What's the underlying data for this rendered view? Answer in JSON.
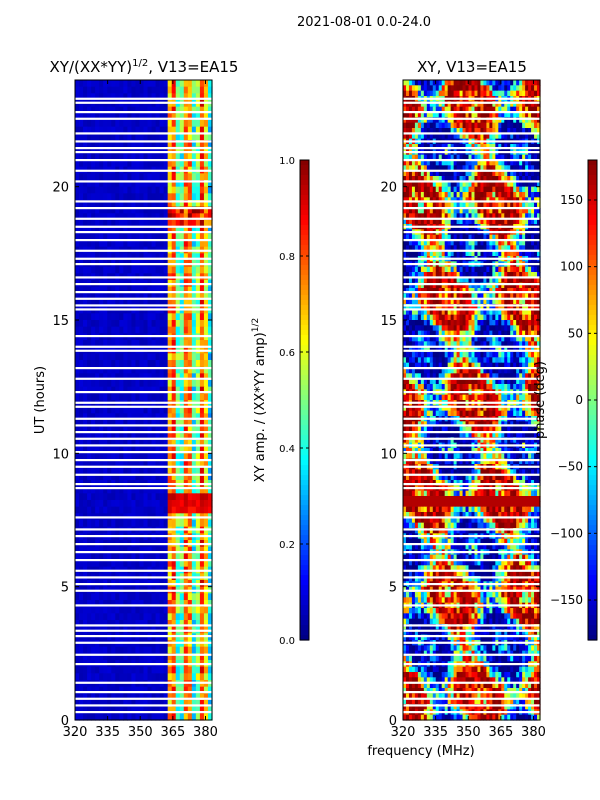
{
  "figure": {
    "suptitle": "2021-08-01 0.0-24.0"
  },
  "chart_data": [
    {
      "type": "heatmap",
      "title_main": "XY/(XX*YY)",
      "title_sup": "1/2",
      "title_rest": ", V13=EA15",
      "xlabel": "",
      "ylabel": "UT (hours)",
      "xlim": [
        320,
        383
      ],
      "ylim": [
        0,
        24
      ],
      "xticks": [
        320,
        335,
        350,
        365,
        380
      ],
      "yticks": [
        0,
        5,
        10,
        15,
        20
      ],
      "colormap": "jet",
      "colorbar": {
        "label_main": "XY amp. / (XX*YY amp)",
        "label_sup": "1/2",
        "range": [
          0.0,
          1.0
        ],
        "ticks": [
          "0.0",
          "0.2",
          "0.4",
          "0.6",
          "0.8",
          "1.0"
        ],
        "tick_values": [
          0.0,
          0.2,
          0.4,
          0.6,
          0.8,
          1.0
        ]
      },
      "rfi_band_MHz": [
        363,
        383
      ],
      "description_values": {
        "background_amplitude": 0.05,
        "band_peak_amplitude": 0.95
      }
    },
    {
      "type": "heatmap",
      "title_main": "XY, V13=EA15",
      "xlabel": "frequency (MHz)",
      "ylabel": "",
      "xlim": [
        320,
        383
      ],
      "ylim": [
        0,
        24
      ],
      "xticks": [
        320,
        335,
        350,
        365,
        380
      ],
      "yticks": [
        0,
        5,
        10,
        15,
        20
      ],
      "colormap": "jet",
      "colorbar": {
        "label_main": "phase (deg)",
        "range": [
          -180,
          180
        ],
        "ticks": [
          "150",
          "100",
          "50",
          "0",
          "−50",
          "−100",
          "−150"
        ],
        "tick_values": [
          150,
          100,
          50,
          0,
          -50,
          -100,
          -150
        ]
      }
    }
  ],
  "flagged_rows_hours": [
    0.3,
    0.55,
    0.8,
    1.05,
    1.4,
    2.1,
    2.45,
    2.9,
    3.15,
    3.35,
    3.55,
    4.3,
    4.85,
    5.1,
    5.35,
    5.6,
    6.0,
    6.3,
    6.6,
    6.9,
    7.15,
    7.6,
    8.7,
    8.85,
    9.2,
    9.5,
    9.75,
    10.05,
    10.3,
    10.55,
    10.8,
    11.05,
    11.3,
    11.75,
    11.9,
    12.3,
    12.8,
    13.2,
    13.85,
    14.0,
    14.4,
    15.4,
    15.55,
    15.8,
    16.05,
    16.35,
    16.6,
    17.1,
    17.3,
    17.6,
    18.0,
    18.3,
    18.5,
    18.8,
    19.2,
    19.45,
    20.2,
    20.6,
    21.0,
    21.3,
    21.45,
    21.7,
    22.0,
    22.55,
    22.8,
    23.15,
    23.3
  ]
}
